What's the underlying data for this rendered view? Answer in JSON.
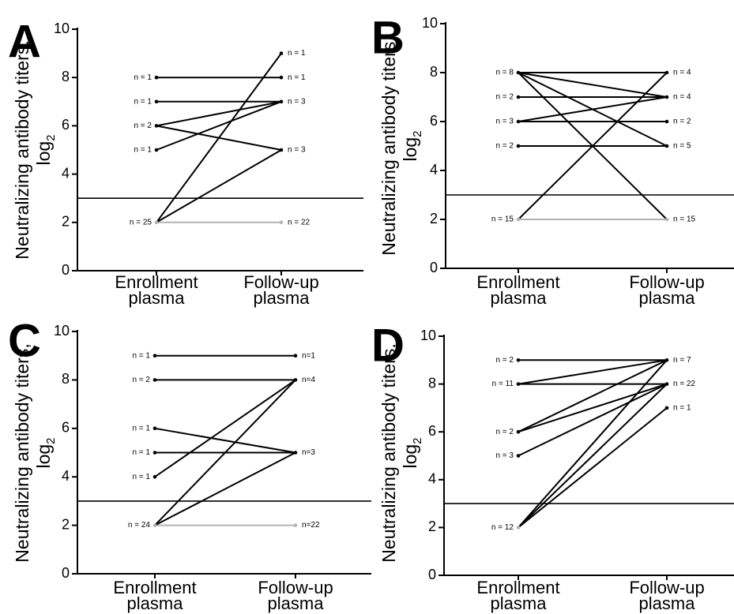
{
  "figure": {
    "line_colors": {
      "above": "#000000",
      "below": "#b3b3b3",
      "threshold": "#000000"
    },
    "panels": [
      {
        "letter": "A",
        "enroll_labels": [
          {
            "y": 8,
            "text": "n = 1"
          },
          {
            "y": 7,
            "text": "n = 1"
          },
          {
            "y": 6,
            "text": "n = 2"
          },
          {
            "y": 5,
            "text": "n = 1"
          },
          {
            "y": 2,
            "text": "n = 25"
          }
        ],
        "follow_labels": [
          {
            "y": 9,
            "text": "n = 1"
          },
          {
            "y": 8,
            "text": "n = 1"
          },
          {
            "y": 7,
            "text": "n = 3"
          },
          {
            "y": 5,
            "text": "n = 3"
          },
          {
            "y": 2,
            "text": "n = 22"
          }
        ]
      },
      {
        "letter": "B",
        "enroll_labels": [
          {
            "y": 8,
            "text": "n = 8"
          },
          {
            "y": 7,
            "text": "n = 2"
          },
          {
            "y": 6,
            "text": "n = 3"
          },
          {
            "y": 5,
            "text": "n = 2"
          },
          {
            "y": 2,
            "text": "n = 15"
          }
        ],
        "follow_labels": [
          {
            "y": 8,
            "text": "n = 4"
          },
          {
            "y": 7,
            "text": "n = 4"
          },
          {
            "y": 6,
            "text": "n = 2"
          },
          {
            "y": 5,
            "text": "n = 5"
          },
          {
            "y": 2,
            "text": "n = 15"
          }
        ]
      },
      {
        "letter": "C",
        "enroll_labels": [
          {
            "y": 9,
            "text": "n = 1"
          },
          {
            "y": 8,
            "text": "n = 2"
          },
          {
            "y": 6,
            "text": "n = 1"
          },
          {
            "y": 5,
            "text": "n = 1"
          },
          {
            "y": 4,
            "text": "n = 1"
          },
          {
            "y": 2,
            "text": "n = 24"
          }
        ],
        "follow_labels": [
          {
            "y": 9,
            "text": "n=1"
          },
          {
            "y": 8,
            "text": "n=4"
          },
          {
            "y": 5,
            "text": "n=3"
          },
          {
            "y": 2,
            "text": "n=22"
          }
        ]
      },
      {
        "letter": "D",
        "enroll_labels": [
          {
            "y": 9,
            "text": "n = 2"
          },
          {
            "y": 8,
            "text": "n = 11"
          },
          {
            "y": 6,
            "text": "n = 2"
          },
          {
            "y": 5,
            "text": "n = 3"
          },
          {
            "y": 2,
            "text": "n = 12"
          }
        ],
        "follow_labels": [
          {
            "y": 9,
            "text": "n = 7"
          },
          {
            "y": 8,
            "text": "n = 22"
          },
          {
            "y": 7,
            "text": "n = 1"
          }
        ]
      }
    ]
  },
  "chart_data": [
    {
      "type": "line",
      "panel": "A",
      "categories": [
        "Enrollment plasma",
        "Follow-up plasma"
      ],
      "ylabel": "Neutralizing antibody titers, log2",
      "ylim": [
        0,
        10
      ],
      "yticks": [
        0,
        2,
        4,
        6,
        8,
        10
      ],
      "threshold": 3,
      "grid": false,
      "series": [
        {
          "values": [
            8,
            8
          ]
        },
        {
          "values": [
            7,
            7
          ]
        },
        {
          "values": [
            6,
            7
          ]
        },
        {
          "values": [
            6,
            5
          ]
        },
        {
          "values": [
            5,
            7
          ]
        },
        {
          "values": [
            2,
            9
          ]
        },
        {
          "values": [
            2,
            5
          ]
        },
        {
          "values": [
            2,
            2
          ]
        }
      ]
    },
    {
      "type": "line",
      "panel": "B",
      "categories": [
        "Enrollment plasma",
        "Follow-up plasma"
      ],
      "ylabel": "Neutralizing antibody titers, log2",
      "ylim": [
        0,
        10
      ],
      "yticks": [
        0,
        2,
        4,
        6,
        8,
        10
      ],
      "threshold": 3,
      "grid": false,
      "series": [
        {
          "values": [
            8,
            8
          ]
        },
        {
          "values": [
            8,
            7
          ]
        },
        {
          "values": [
            8,
            5
          ]
        },
        {
          "values": [
            8,
            2
          ]
        },
        {
          "values": [
            7,
            7
          ]
        },
        {
          "values": [
            6,
            6
          ]
        },
        {
          "values": [
            6,
            7
          ]
        },
        {
          "values": [
            5,
            5
          ]
        },
        {
          "values": [
            2,
            8
          ]
        },
        {
          "values": [
            2,
            2
          ]
        }
      ]
    },
    {
      "type": "line",
      "panel": "C",
      "categories": [
        "Enrollment plasma",
        "Follow-up plasma"
      ],
      "ylabel": "Neutralizing antibody titers, log2",
      "ylim": [
        0,
        10
      ],
      "yticks": [
        0,
        2,
        4,
        6,
        8,
        10
      ],
      "threshold": 3,
      "grid": false,
      "series": [
        {
          "values": [
            9,
            9
          ]
        },
        {
          "values": [
            8,
            8
          ]
        },
        {
          "values": [
            6,
            5
          ]
        },
        {
          "values": [
            5,
            5
          ]
        },
        {
          "values": [
            4,
            8
          ]
        },
        {
          "values": [
            2,
            8
          ]
        },
        {
          "values": [
            2,
            5
          ]
        },
        {
          "values": [
            2,
            2
          ]
        }
      ]
    },
    {
      "type": "line",
      "panel": "D",
      "categories": [
        "Enrollment plasma",
        "Follow-up plasma"
      ],
      "ylabel": "Neutralizing antibody titers, log2",
      "ylim": [
        0,
        10
      ],
      "yticks": [
        0,
        2,
        4,
        6,
        8,
        10
      ],
      "threshold": 3,
      "grid": false,
      "series": [
        {
          "values": [
            9,
            9
          ]
        },
        {
          "values": [
            8,
            9
          ]
        },
        {
          "values": [
            8,
            8
          ]
        },
        {
          "values": [
            6,
            9
          ]
        },
        {
          "values": [
            6,
            8
          ]
        },
        {
          "values": [
            5,
            8
          ]
        },
        {
          "values": [
            2,
            9
          ]
        },
        {
          "values": [
            2,
            8
          ]
        },
        {
          "values": [
            2,
            7
          ]
        }
      ]
    }
  ]
}
